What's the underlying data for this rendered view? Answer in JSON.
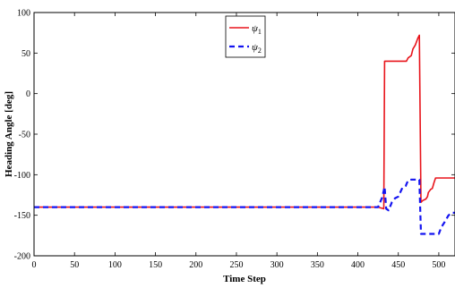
{
  "chart_data": {
    "type": "line",
    "title": "",
    "xlabel": "Time Step",
    "ylabel": "Heading Angle [deg]",
    "xlim": [
      0,
      520
    ],
    "ylim": [
      -200,
      100
    ],
    "xticks": [
      0,
      50,
      100,
      150,
      200,
      250,
      300,
      350,
      400,
      450,
      500
    ],
    "yticks": [
      100,
      50,
      0,
      -50,
      -100,
      -150,
      -200
    ],
    "grid": false,
    "legend_position": "top-center",
    "series": [
      {
        "name": "ψ1",
        "legend_symbol": "ψ",
        "legend_subscript": "1",
        "color": "#e8141b",
        "style": "solid",
        "points": [
          [
            0,
            -140
          ],
          [
            425,
            -140
          ],
          [
            432,
            -142
          ],
          [
            433,
            40
          ],
          [
            440,
            40
          ],
          [
            455,
            40
          ],
          [
            460,
            40
          ],
          [
            462,
            44
          ],
          [
            466,
            47
          ],
          [
            468,
            55
          ],
          [
            471,
            60
          ],
          [
            474,
            68
          ],
          [
            476,
            72
          ],
          [
            478,
            -134
          ],
          [
            480,
            -132
          ],
          [
            484,
            -130
          ],
          [
            486,
            -127
          ],
          [
            487,
            -122
          ],
          [
            490,
            -118
          ],
          [
            492,
            -117
          ],
          [
            494,
            -110
          ],
          [
            496,
            -104
          ],
          [
            507,
            -104
          ],
          [
            520,
            -104
          ]
        ]
      },
      {
        "name": "ψ2",
        "legend_symbol": "ψ",
        "legend_subscript": "2",
        "color": "#1414f0",
        "style": "dashed",
        "points": [
          [
            0,
            -140
          ],
          [
            425,
            -140
          ],
          [
            430,
            -128
          ],
          [
            433,
            -115
          ],
          [
            435,
            -142
          ],
          [
            438,
            -144
          ],
          [
            442,
            -134
          ],
          [
            446,
            -129
          ],
          [
            450,
            -127
          ],
          [
            455,
            -116
          ],
          [
            459,
            -114
          ],
          [
            462,
            -107
          ],
          [
            466,
            -106
          ],
          [
            470,
            -106
          ],
          [
            475,
            -106
          ],
          [
            476,
            -106
          ],
          [
            478,
            -173
          ],
          [
            490,
            -173
          ],
          [
            500,
            -173
          ],
          [
            503,
            -165
          ],
          [
            508,
            -157
          ],
          [
            512,
            -150
          ],
          [
            516,
            -147
          ],
          [
            520,
            -147
          ]
        ]
      }
    ]
  }
}
